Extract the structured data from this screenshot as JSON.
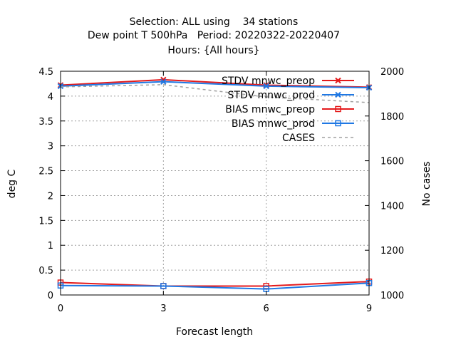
{
  "chart_data": {
    "type": "line",
    "title_lines": [
      "Selection: ALL using    34 stations",
      "Dew point T 500hPa   Period: 20220322-20220407",
      "Hours: {All hours}"
    ],
    "xlabel": "Forecast length",
    "ylabel": "deg C",
    "y2label": "No cases",
    "xlim": [
      0,
      9
    ],
    "ylim": [
      0,
      4.5
    ],
    "y2lim": [
      1000,
      2000
    ],
    "xticks": [
      0,
      3,
      6,
      9
    ],
    "yticks": [
      0,
      0.5,
      1,
      1.5,
      2,
      2.5,
      3,
      3.5,
      4,
      4.5
    ],
    "y2ticks": [
      1000,
      1200,
      1400,
      1600,
      1800,
      2000
    ],
    "grid": true,
    "legend_position": "top-right",
    "series": [
      {
        "name": "STDV mnwc_preop",
        "color": "#e41a1c",
        "marker": "x",
        "dash": false,
        "axis": "y1",
        "x": [
          0,
          3,
          6,
          9
        ],
        "values": [
          4.22,
          4.33,
          4.22,
          4.18
        ]
      },
      {
        "name": "STDV mnwc_prod",
        "color": "#1f78e4",
        "marker": "x",
        "dash": false,
        "axis": "y1",
        "x": [
          0,
          3,
          6,
          9
        ],
        "values": [
          4.2,
          4.29,
          4.2,
          4.17
        ]
      },
      {
        "name": "BIAS mnwc_preop",
        "color": "#e41a1c",
        "marker": "square",
        "dash": false,
        "axis": "y1",
        "x": [
          0,
          3,
          6,
          9
        ],
        "values": [
          0.25,
          0.18,
          0.18,
          0.27
        ]
      },
      {
        "name": "BIAS mnwc_prod",
        "color": "#1f78e4",
        "marker": "square",
        "dash": false,
        "axis": "y1",
        "x": [
          0,
          3,
          6,
          9
        ],
        "values": [
          0.19,
          0.18,
          0.12,
          0.24
        ]
      },
      {
        "name": "CASES",
        "color": "#a0a0a0",
        "marker": "none",
        "dash": true,
        "axis": "y2",
        "x": [
          0,
          3,
          6,
          9
        ],
        "values": [
          1930,
          1940,
          1885,
          1860
        ]
      }
    ]
  }
}
